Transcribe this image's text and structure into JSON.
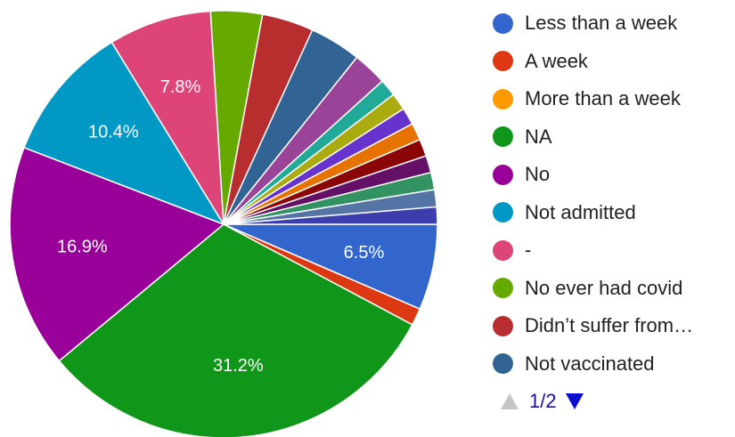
{
  "chart_data": {
    "type": "pie",
    "start_angle_deg": 90,
    "direction": "clockwise",
    "slices": [
      {
        "label": "Less than a week",
        "value": 6.5,
        "color": "#3366cc",
        "data_label": "6.5%"
      },
      {
        "label": "A week",
        "value": 1.3,
        "color": "#dc3912",
        "data_label": ""
      },
      {
        "label": "More than a week",
        "value": 0,
        "color": "#ff9900",
        "data_label": ""
      },
      {
        "label": "NA",
        "value": 31.2,
        "color": "#109618",
        "data_label": "31.2%"
      },
      {
        "label": "No",
        "value": 16.9,
        "color": "#990099",
        "data_label": "16.9%"
      },
      {
        "label": "Not admitted",
        "value": 10.4,
        "color": "#0099c6",
        "data_label": "10.4%"
      },
      {
        "label": "-",
        "value": 7.8,
        "color": "#dd4477",
        "data_label": "7.8%"
      },
      {
        "label": "No ever had covid",
        "value": 3.9,
        "color": "#66aa00",
        "data_label": ""
      },
      {
        "label": "Didn’t suffer from…",
        "value": 3.9,
        "color": "#b82e2e",
        "data_label": ""
      },
      {
        "label": "Not vaccinated",
        "value": 3.9,
        "color": "#316395",
        "data_label": ""
      },
      {
        "label": "",
        "value": 2.6,
        "color": "#994499",
        "data_label": ""
      },
      {
        "label": "",
        "value": 1.3,
        "color": "#22aa99",
        "data_label": ""
      },
      {
        "label": "",
        "value": 1.3,
        "color": "#aaaa11",
        "data_label": ""
      },
      {
        "label": "",
        "value": 1.3,
        "color": "#6633cc",
        "data_label": ""
      },
      {
        "label": "",
        "value": 1.3,
        "color": "#e67300",
        "data_label": ""
      },
      {
        "label": "",
        "value": 1.3,
        "color": "#8b0707",
        "data_label": ""
      },
      {
        "label": "",
        "value": 1.3,
        "color": "#651067",
        "data_label": ""
      },
      {
        "label": "",
        "value": 1.3,
        "color": "#329262",
        "data_label": ""
      },
      {
        "label": "",
        "value": 1.3,
        "color": "#5574a6",
        "data_label": ""
      },
      {
        "label": "",
        "value": 1.3,
        "color": "#3b3eac",
        "data_label": ""
      }
    ]
  },
  "legend": {
    "items": [
      {
        "label": "Less than a week",
        "color": "#3366cc"
      },
      {
        "label": "A week",
        "color": "#dc3912"
      },
      {
        "label": "More than a week",
        "color": "#ff9900"
      },
      {
        "label": "NA",
        "color": "#109618"
      },
      {
        "label": "No",
        "color": "#990099"
      },
      {
        "label": "Not admitted",
        "color": "#0099c6"
      },
      {
        "label": "-",
        "color": "#dd4477"
      },
      {
        "label": "No ever had covid",
        "color": "#66aa00"
      },
      {
        "label": "Didn’t suffer from…",
        "color": "#b82e2e"
      },
      {
        "label": "Not vaccinated",
        "color": "#316395"
      }
    ]
  },
  "pager": {
    "text": "1/2",
    "prev_icon": "triangle-up-icon",
    "next_icon": "triangle-down-icon",
    "prev_color": "#c5c5c5",
    "next_color": "#0d0dcf"
  }
}
